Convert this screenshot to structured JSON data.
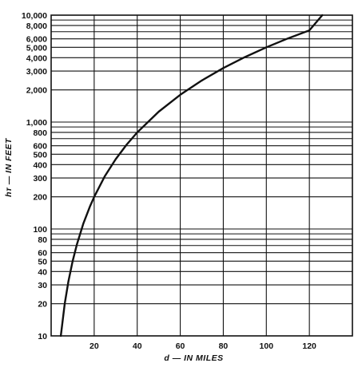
{
  "chart_data": {
    "type": "line",
    "title": "",
    "xlabel": "d — IN MILES",
    "ylabel": "hᴛ — IN FEET",
    "x_scale": "linear",
    "y_scale": "log",
    "xlim": [
      0,
      140
    ],
    "ylim": [
      10,
      10000
    ],
    "grid": true,
    "legend": "none",
    "x_ticks": [
      20,
      40,
      60,
      80,
      100,
      120
    ],
    "x_tick_labels": [
      "20",
      "40",
      "60",
      "80",
      "100",
      "120"
    ],
    "y_ticks": [
      10,
      20,
      30,
      40,
      50,
      60,
      80,
      100,
      200,
      300,
      400,
      500,
      600,
      800,
      1000,
      2000,
      3000,
      4000,
      5000,
      6000,
      8000,
      10000
    ],
    "y_tick_labels": [
      "10",
      "20",
      "30",
      "40",
      "50",
      "60",
      "80",
      "100",
      "200",
      "300",
      "400",
      "500",
      "600",
      "800",
      "1,000",
      "2,000",
      "3,000",
      "4,000",
      "5,000",
      "6,000",
      "8,000",
      "10,000"
    ],
    "series": [
      {
        "color": "#111111",
        "x": [
          4.5,
          6.3,
          8,
          10,
          12,
          15,
          18,
          20,
          25,
          30,
          35,
          40,
          50,
          60,
          70,
          80,
          90,
          100,
          110,
          120,
          126
        ],
        "y": [
          10,
          20,
          32,
          50,
          72,
          113,
          162,
          200,
          313,
          450,
          613,
          800,
          1250,
          1800,
          2450,
          3200,
          4050,
          5000,
          6050,
          7200,
          10000
        ]
      }
    ]
  }
}
